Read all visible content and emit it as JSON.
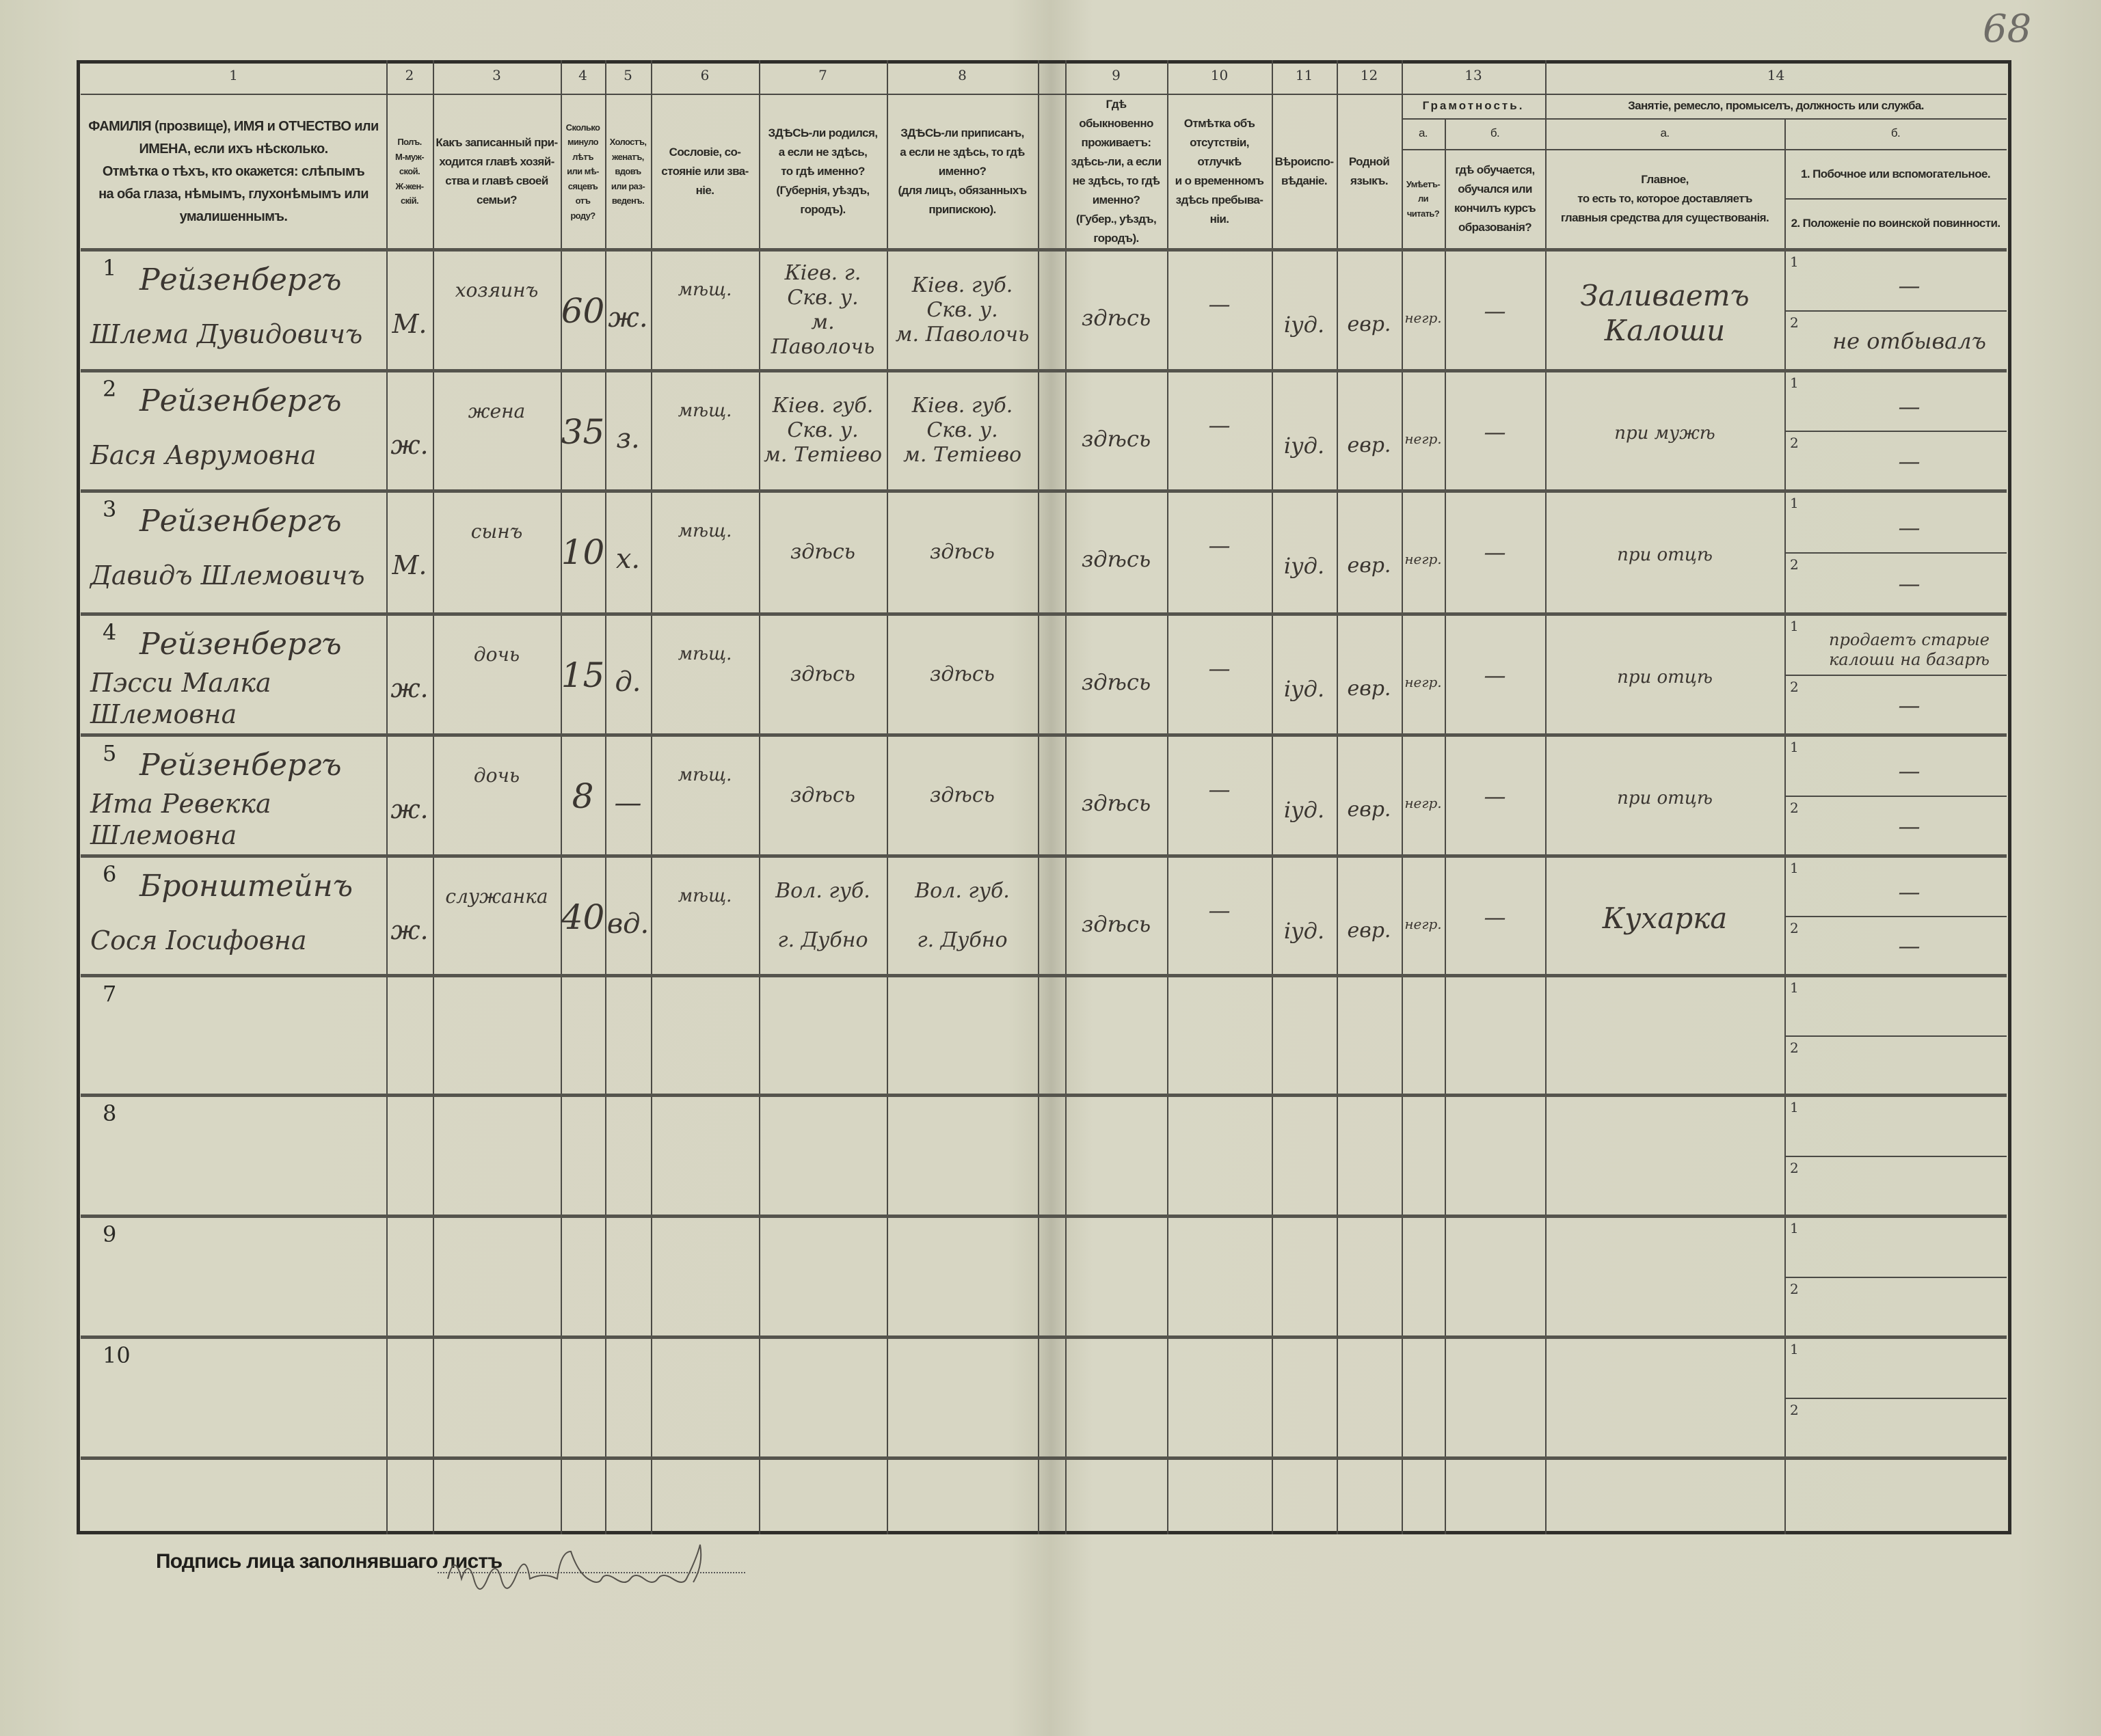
{
  "page_number": "68",
  "header": {
    "col_numbers": [
      "1",
      "2",
      "3",
      "4",
      "5",
      "6",
      "7",
      "8",
      "9",
      "10",
      "11",
      "12",
      "13",
      "14"
    ],
    "c1": "ФАМИЛІЯ (прозвище), ИМЯ и ОТЧЕСТВО или\nИМЕНА, если ихъ нѣсколько.\nОтмѣтка о тѣхъ, кто окажется: слѣпымъ\nна оба глаза, нѣмымъ, глухонѣмымъ или\nумалишеннымъ.",
    "c2": "Полъ.\nМ-муж-\nской.\nЖ-жен-\nскій.",
    "c3": "Какъ записанный при-\nходится главѣ хозяй-\nства и главѣ своей\nсемьи?",
    "c4": "Сколько\nминуло\nлѣтъ\nили мѣ-\nсяцевъ\nотъ роду?",
    "c5": "Холостъ,\nженатъ,\nвдовъ\nили раз-\nведенъ.",
    "c6": "Сословіе, со-\nстояніе или зва-\nніе.",
    "c7": "ЗДѢСЬ-ли родился,\nа если не здѣсь,\nто гдѣ именно?\n(Губернія, уѣздъ, городъ).",
    "c8": "ЗДѢСЬ-ли приписанъ,\nа если не здѣсь, то гдѣ\nименно?\n(для лицъ, обязанныхъ\nприпискою).",
    "c9": "Гдѣ обыкновенно\nпроживаетъ:\nздѣсь-ли, а если\nне здѣсь, то гдѣ\nименно?\n(Губер., уѣздъ, городъ).",
    "c10": "Отмѣтка объ\nотсутствіи, отлучкѣ\nи о временномъ\nздѣсь пребыва-\nніи.",
    "c11": "Вѣроиспо-\nвѣданіе.",
    "c12": "Родной\nязыкъ.",
    "c13": "Грамотность.",
    "c13a_letter": "а.",
    "c13a": "Умѣетъ-\nли\nчитать?",
    "c13b_letter": "б.",
    "c13b": "гдѣ обучается,\nобучался или\nкончилъ курсъ\nобразованія?",
    "c14": "Занятіе, ремесло, промыселъ, должность или служба.",
    "c14a_letter": "а.",
    "c14a": "Главное,\nто есть то, которое доставляетъ\nглавныя средства для существованія.",
    "c14b_letter": "б.",
    "c14b1": "1. Побочное или вспомогательное.",
    "c14b2": "2. Положеніе по воинской повинности."
  },
  "sub_labels": [
    "1",
    "2"
  ],
  "rows": [
    {
      "num": "1",
      "surname": "Рейзенбергъ",
      "given": "Шлема Дувидовичъ",
      "sex": "М.",
      "relation": "хозяинъ",
      "age": "60",
      "marital": "ж.",
      "estate": "мѣщ.",
      "born": "Кіев. г.\nСкв. у.\nм. Паволочь",
      "registered": "Кіев. губ.\nСкв. у.\nм. Паволочь",
      "residence": "здѣсь",
      "absence": "—",
      "religion": "іуд.",
      "language": "евр.",
      "literate": "негр.",
      "education": "—",
      "occupation": "Заливаетъ\nКалоши",
      "secondary": "—",
      "military": "не отбывалъ"
    },
    {
      "num": "2",
      "surname": "Рейзенбергъ",
      "given": "Бася Аврумовна",
      "sex": "ж.",
      "relation": "жена",
      "age": "35",
      "marital": "з.",
      "estate": "мѣщ.",
      "born": "Кіев. губ.\nСкв. у.\nм. Тетіево",
      "registered": "Кіев. губ.\nСкв. у.\nм. Тетіево",
      "residence": "здѣсь",
      "absence": "—",
      "religion": "іуд.",
      "language": "евр.",
      "literate": "негр.",
      "education": "—",
      "occupation": "при мужѣ",
      "secondary": "—",
      "military": "—"
    },
    {
      "num": "3",
      "surname": "Рейзенбергъ",
      "given": "Давидъ Шлемовичъ",
      "sex": "М.",
      "relation": "сынъ",
      "age": "10",
      "marital": "х.",
      "estate": "мѣщ.",
      "born": "здѣсь",
      "registered": "здѣсь",
      "residence": "здѣсь",
      "absence": "—",
      "religion": "іуд.",
      "language": "евр.",
      "literate": "негр.",
      "education": "—",
      "occupation": "при отцѣ",
      "secondary": "—",
      "military": "—"
    },
    {
      "num": "4",
      "surname": "Рейзенбергъ",
      "given": "Пэсси Малка Шлемовна",
      "sex": "ж.",
      "relation": "дочь",
      "age": "15",
      "marital": "д.",
      "estate": "мѣщ.",
      "born": "здѣсь",
      "registered": "здѣсь",
      "residence": "здѣсь",
      "absence": "—",
      "religion": "іуд.",
      "language": "евр.",
      "literate": "негр.",
      "education": "—",
      "occupation": "при отцѣ",
      "secondary": "продаетъ старые\nкалоши на базарѣ",
      "military": "—"
    },
    {
      "num": "5",
      "surname": "Рейзенбергъ",
      "given": "Ита Ревекка Шлемовна",
      "sex": "ж.",
      "relation": "дочь",
      "age": "8",
      "marital": "—",
      "estate": "мѣщ.",
      "born": "здѣсь",
      "registered": "здѣсь",
      "residence": "здѣсь",
      "absence": "—",
      "religion": "іуд.",
      "language": "евр.",
      "literate": "негр.",
      "education": "—",
      "occupation": "при отцѣ",
      "secondary": "—",
      "military": "—"
    },
    {
      "num": "6",
      "surname": "Бронштейнъ",
      "given": "Сося Іосифовна",
      "sex": "ж.",
      "relation": "служанка",
      "age": "40",
      "marital": "вд.",
      "estate": "мѣщ.",
      "born": "Вол. губ.\n\nг. Дубно",
      "registered": "Вол. губ.\n\nг. Дубно",
      "residence": "здѣсь",
      "absence": "—",
      "religion": "іуд.",
      "language": "евр.",
      "literate": "негр.",
      "education": "—",
      "occupation": "Кухарка",
      "secondary": "—",
      "military": "—"
    },
    {
      "num": "7"
    },
    {
      "num": "8"
    },
    {
      "num": "9"
    },
    {
      "num": "10"
    }
  ],
  "signature_label": "Подпись лица заполнявшаго листъ"
}
